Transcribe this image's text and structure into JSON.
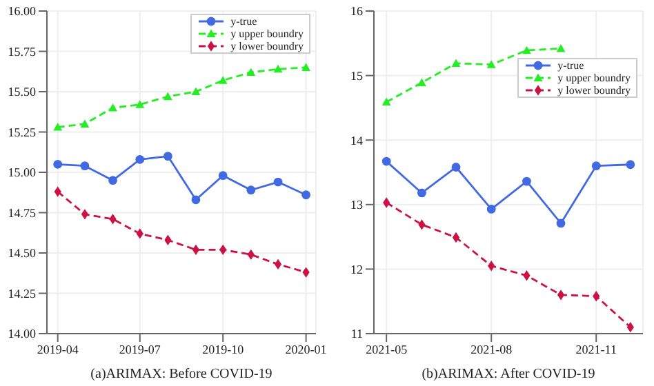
{
  "chart_data": [
    {
      "type": "line",
      "xlabel": "(a)ARIMAX: Before COVID-19",
      "x": [
        "2019-04",
        "2019-05",
        "2019-06",
        "2019-07",
        "2019-08",
        "2019-09",
        "2019-10",
        "2019-11",
        "2019-12",
        "2020-01"
      ],
      "xlim": [
        "2019-03-20",
        "2020-01-12"
      ],
      "xticks": [
        "2019-04",
        "2019-07",
        "2019-10",
        "2020-01"
      ],
      "ylim": [
        14,
        16
      ],
      "yticks": [
        {
          "value": 14,
          "label": "14.00"
        },
        {
          "value": 14.25,
          "label": "14.25"
        },
        {
          "value": 14.5,
          "label": "14.50"
        },
        {
          "value": 14.75,
          "label": "14.75"
        },
        {
          "value": 15,
          "label": "15.00"
        },
        {
          "value": 15.25,
          "label": "15.25"
        },
        {
          "value": 15.5,
          "label": "15.50"
        },
        {
          "value": 15.75,
          "label": "15.75"
        },
        {
          "value": 16,
          "label": "16.00"
        }
      ],
      "grid": true,
      "legend": "top right",
      "series": [
        {
          "name": "y-true",
          "color": "#4169e1",
          "marker": "circle",
          "line_style": "solid",
          "values": [
            15.05,
            15.04,
            14.95,
            15.08,
            15.1,
            14.83,
            14.98,
            14.89,
            14.94,
            14.86
          ]
        },
        {
          "name": "y upper boundry",
          "color": "#22ee22",
          "marker": "triangle",
          "line_style": "dashed",
          "values": [
            15.28,
            15.3,
            15.4,
            15.42,
            15.47,
            15.5,
            15.57,
            15.62,
            15.64,
            15.65
          ]
        },
        {
          "name": "y lower boundry",
          "color": "#cc1144",
          "marker": "diamond",
          "line_style": "dashed",
          "values": [
            14.88,
            14.74,
            14.71,
            14.62,
            14.58,
            14.52,
            14.52,
            14.49,
            14.43,
            14.38
          ]
        }
      ]
    },
    {
      "type": "line",
      "xlabel": "(b)ARIMAX: After COVID-19",
      "x": [
        "2021-05",
        "2021-06",
        "2021-07",
        "2021-08",
        "2021-09",
        "2021-10",
        "2021-11",
        "2021-12"
      ],
      "xlim": [
        "2021-04-20",
        "2021-12-12"
      ],
      "xticks": [
        "2021-05",
        "2021-08",
        "2021-11"
      ],
      "ylim": [
        11,
        16
      ],
      "yticks": [
        11,
        12,
        13,
        14,
        15,
        16
      ],
      "grid": true,
      "legend": "top right",
      "series": [
        {
          "name": "y-true",
          "color": "#4169e1",
          "marker": "circle",
          "line_style": "solid",
          "values": [
            13.67,
            13.18,
            13.58,
            12.93,
            13.36,
            12.71,
            13.6,
            13.62
          ]
        },
        {
          "name": "y upper boundry",
          "color": "#22ee22",
          "marker": "triangle",
          "line_style": "dashed",
          "values": [
            14.59,
            14.89,
            15.19,
            15.17,
            15.39,
            15.42,
            null,
            null
          ]
        },
        {
          "name": "y lower boundry",
          "color": "#cc1144",
          "marker": "diamond",
          "line_style": "dashed",
          "values": [
            13.03,
            12.69,
            12.49,
            12.05,
            11.9,
            11.6,
            11.58,
            11.1
          ]
        }
      ]
    }
  ]
}
